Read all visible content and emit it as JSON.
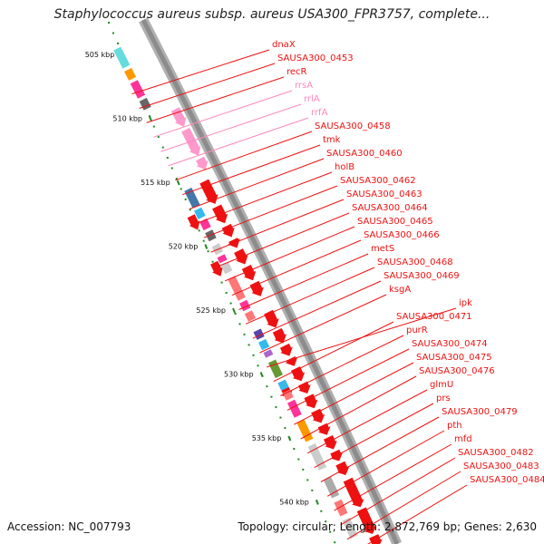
{
  "title": "Staphylococcus aureus subsp. aureus USA300_FPR3757, complete...",
  "footer": {
    "accession": "Accession: NC_007793",
    "topology": "Topology: circular; Length: 2,872,769 bp; Genes: 2,630"
  },
  "colors": {
    "cds": "#ee1111",
    "rrna": "#ff99cc",
    "rrna_label": "#ff88bb",
    "backbone": "#8c8c8c",
    "tick": "#228822"
  },
  "scale_labels": [
    "505 kbp",
    "510 kbp",
    "515 kbp",
    "520 kbp",
    "525 kbp",
    "530 kbp",
    "535 kbp",
    "540 kbp"
  ],
  "genes": [
    {
      "name": "dnaX",
      "type": "cds"
    },
    {
      "name": "SAUSA300_0453",
      "type": "cds"
    },
    {
      "name": "recR",
      "type": "cds"
    },
    {
      "name": "rrsA",
      "type": "rrna"
    },
    {
      "name": "rrlA",
      "type": "rrna"
    },
    {
      "name": "rrfA",
      "type": "rrna"
    },
    {
      "name": "SAUSA300_0458",
      "type": "cds"
    },
    {
      "name": "tmk",
      "type": "cds"
    },
    {
      "name": "SAUSA300_0460",
      "type": "cds"
    },
    {
      "name": "holB",
      "type": "cds"
    },
    {
      "name": "SAUSA300_0462",
      "type": "cds"
    },
    {
      "name": "SAUSA300_0463",
      "type": "cds"
    },
    {
      "name": "SAUSA300_0464",
      "type": "cds"
    },
    {
      "name": "SAUSA300_0465",
      "type": "cds"
    },
    {
      "name": "SAUSA300_0466",
      "type": "cds"
    },
    {
      "name": "metS",
      "type": "cds"
    },
    {
      "name": "SAUSA300_0468",
      "type": "cds"
    },
    {
      "name": "SAUSA300_0469",
      "type": "cds"
    },
    {
      "name": "ksgA",
      "type": "cds"
    },
    {
      "name": "ipk",
      "type": "cds"
    },
    {
      "name": "SAUSA300_0471",
      "type": "cds"
    },
    {
      "name": "purR",
      "type": "cds"
    },
    {
      "name": "SAUSA300_0474",
      "type": "cds"
    },
    {
      "name": "SAUSA300_0475",
      "type": "cds"
    },
    {
      "name": "SAUSA300_0476",
      "type": "cds"
    },
    {
      "name": "glmU",
      "type": "cds"
    },
    {
      "name": "prs",
      "type": "cds"
    },
    {
      "name": "SAUSA300_0479",
      "type": "cds"
    },
    {
      "name": "pth",
      "type": "cds"
    },
    {
      "name": "mfd",
      "type": "cds"
    },
    {
      "name": "SAUSA300_0482",
      "type": "cds"
    },
    {
      "name": "SAUSA300_0483",
      "type": "cds"
    },
    {
      "name": "SAUSA300_0484",
      "type": "cds"
    }
  ]
}
